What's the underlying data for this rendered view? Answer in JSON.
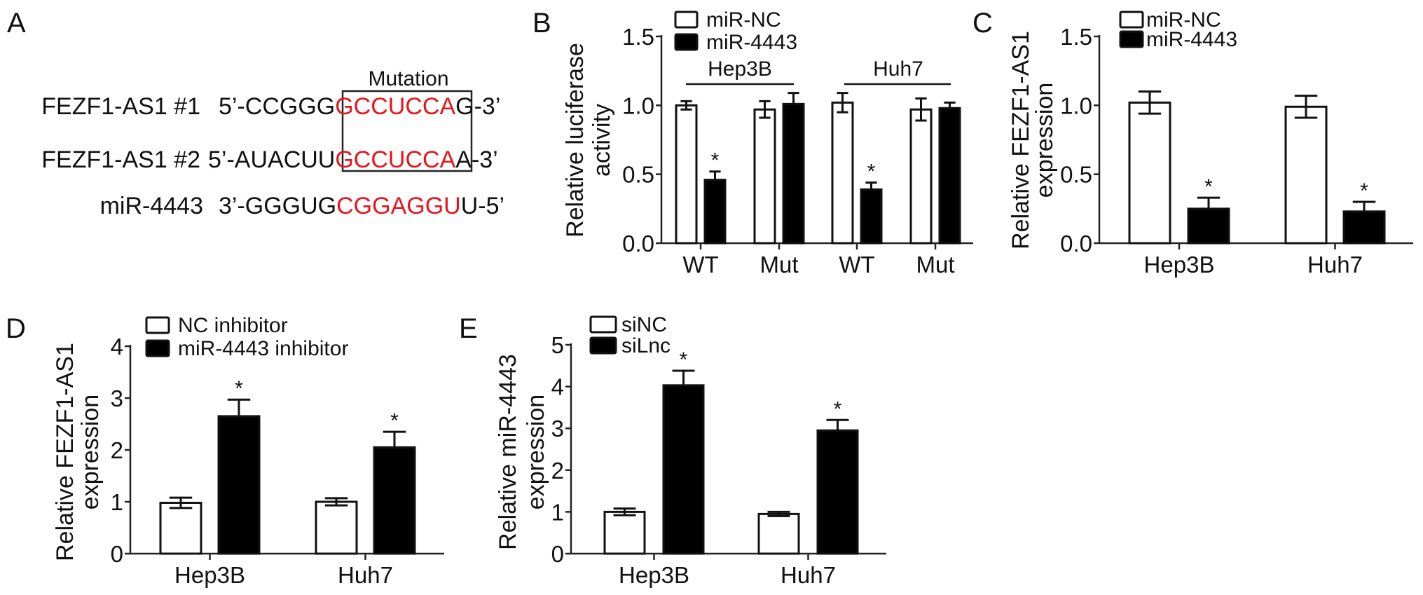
{
  "panels": {
    "a": "A",
    "b": "B",
    "c": "C",
    "d": "D",
    "e": "E"
  },
  "panel_a": {
    "mutation_label": "Mutation",
    "highlight_color": "#e8141b",
    "rows": [
      {
        "name": "FEZF1-AS1 #1",
        "prefix": "5’-CCGGG",
        "core": "GCCUCCA",
        "suffix": "G-3’"
      },
      {
        "name": "FEZF1-AS1 #2",
        "prefix": "5’-AUACUU",
        "core": "GCCUCCA",
        "suffix": "A-3’"
      },
      {
        "name": "miR-4443",
        "prefix": "3’-GGGUG",
        "core": "CGGAGGU",
        "suffix": "U-5’"
      }
    ]
  },
  "chart_data": [
    {
      "type": "bar",
      "panel": "B",
      "ylabel": [
        "Relative luciferase",
        "activity"
      ],
      "ylim": [
        0,
        1.5
      ],
      "yticks": [
        "0.0",
        "0.5",
        "1.0",
        "1.5"
      ],
      "categories": [
        "WT",
        "Mut",
        "WT",
        "Mut"
      ],
      "groups": [
        {
          "label": "Hep3B",
          "categories": [
            0,
            1
          ]
        },
        {
          "label": "Huh7",
          "categories": [
            2,
            3
          ]
        }
      ],
      "legend": "top-left",
      "series": [
        {
          "name": "miR-NC",
          "fill": "#ffffff",
          "values": [
            1.0,
            0.97,
            1.02,
            0.97
          ],
          "errors": [
            0.03,
            0.06,
            0.07,
            0.08
          ],
          "significance": [
            "",
            "",
            "",
            ""
          ]
        },
        {
          "name": "miR-4443",
          "fill": "#000000",
          "values": [
            0.46,
            1.01,
            0.39,
            0.98
          ],
          "errors": [
            0.06,
            0.08,
            0.05,
            0.04
          ],
          "significance": [
            "*",
            "",
            "*",
            ""
          ]
        }
      ]
    },
    {
      "type": "bar",
      "panel": "C",
      "ylabel": [
        "Relative FEZF1-AS1",
        "expression"
      ],
      "ylim": [
        0,
        1.5
      ],
      "yticks": [
        "0.0",
        "0.5",
        "1.0",
        "1.5"
      ],
      "categories": [
        "Hep3B",
        "Huh7"
      ],
      "legend": "top-left",
      "series": [
        {
          "name": "miR-NC",
          "fill": "#ffffff",
          "values": [
            1.02,
            0.99
          ],
          "errors": [
            0.08,
            0.08
          ],
          "significance": [
            "",
            ""
          ]
        },
        {
          "name": "miR-4443",
          "fill": "#000000",
          "values": [
            0.25,
            0.23
          ],
          "errors": [
            0.08,
            0.07
          ],
          "significance": [
            "*",
            "*"
          ]
        }
      ]
    },
    {
      "type": "bar",
      "panel": "D",
      "ylabel": [
        "Relative FEZF1-AS1",
        "expression"
      ],
      "ylim": [
        0,
        4
      ],
      "yticks": [
        "0",
        "1",
        "2",
        "3",
        "4"
      ],
      "categories": [
        "Hep3B",
        "Huh7"
      ],
      "legend": "top-left",
      "series": [
        {
          "name": "NC inhibitor",
          "fill": "#ffffff",
          "values": [
            0.98,
            1.0
          ],
          "errors": [
            0.1,
            0.07
          ],
          "significance": [
            "",
            ""
          ]
        },
        {
          "name": "miR-4443 inhibitor",
          "fill": "#000000",
          "values": [
            2.65,
            2.05
          ],
          "errors": [
            0.32,
            0.3
          ],
          "significance": [
            "*",
            "*"
          ]
        }
      ]
    },
    {
      "type": "bar",
      "panel": "E",
      "ylabel": [
        "Relative miR-4443",
        "expression"
      ],
      "ylim": [
        0,
        5
      ],
      "yticks": [
        "0",
        "1",
        "2",
        "3",
        "4",
        "5"
      ],
      "categories": [
        "Hep3B",
        "Huh7"
      ],
      "legend": "top-left",
      "series": [
        {
          "name": "siNC",
          "fill": "#ffffff",
          "values": [
            1.0,
            0.95
          ],
          "errors": [
            0.08,
            0.05
          ],
          "significance": [
            "",
            ""
          ]
        },
        {
          "name": "siLnc",
          "fill": "#000000",
          "values": [
            4.03,
            2.95
          ],
          "errors": [
            0.35,
            0.25
          ],
          "significance": [
            "*",
            "*"
          ]
        }
      ]
    }
  ]
}
